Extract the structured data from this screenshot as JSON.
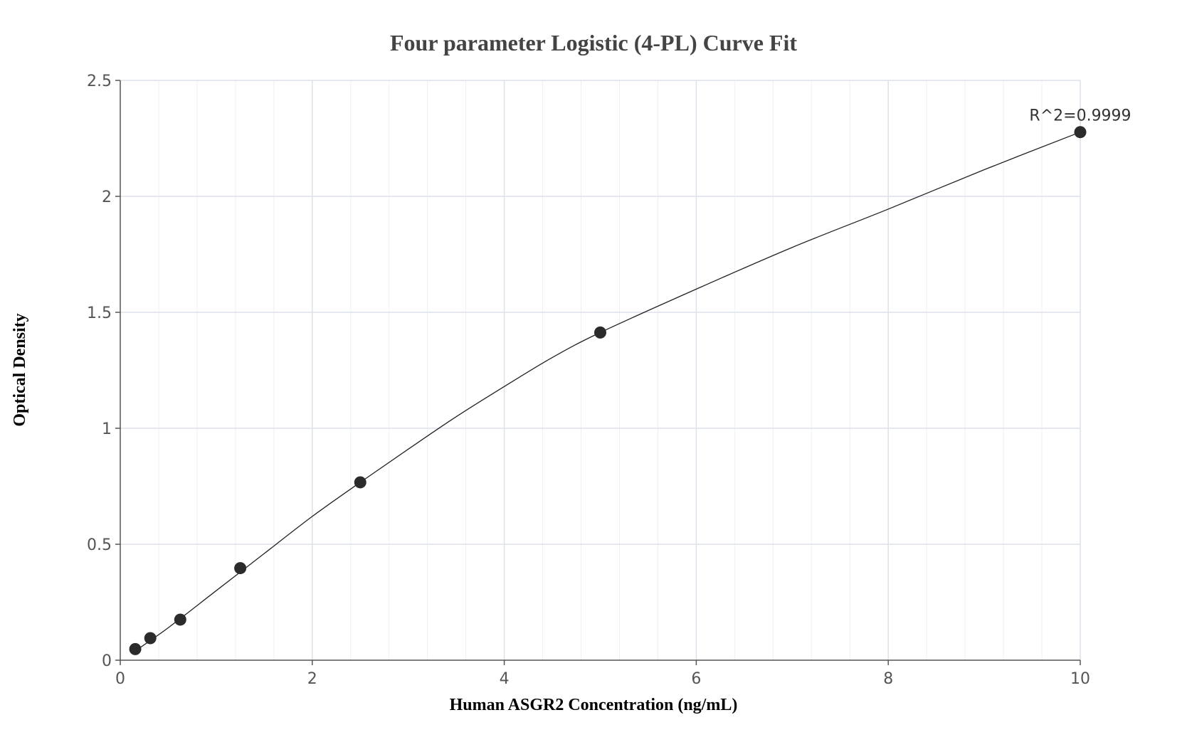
{
  "chart_data": {
    "type": "scatter",
    "title": "Four parameter Logistic (4-PL) Curve Fit",
    "xlabel": "Human ASGR2 Concentration (ng/mL)",
    "ylabel": "Optical Density",
    "xlim": [
      0,
      10
    ],
    "ylim": [
      0,
      2.5
    ],
    "x_ticks": [
      "0",
      "2",
      "4",
      "6",
      "8",
      "10"
    ],
    "y_ticks": [
      "0",
      "0.5",
      "1",
      "1.5",
      "2",
      "2.5"
    ],
    "grid": true,
    "annotation": "R^2=0.9999",
    "series": [
      {
        "points": [
          {
            "x": 0.156,
            "y": 0.048
          },
          {
            "x": 0.313,
            "y": 0.095
          },
          {
            "x": 0.625,
            "y": 0.175
          },
          {
            "x": 1.25,
            "y": 0.397
          },
          {
            "x": 2.5,
            "y": 0.767
          },
          {
            "x": 5.0,
            "y": 1.413
          },
          {
            "x": 10.0,
            "y": 2.277
          }
        ]
      }
    ],
    "fit_curve": [
      {
        "x": 0.156,
        "y": 0.04
      },
      {
        "x": 0.5,
        "y": 0.14
      },
      {
        "x": 1.0,
        "y": 0.3
      },
      {
        "x": 1.5,
        "y": 0.46
      },
      {
        "x": 2.0,
        "y": 0.62
      },
      {
        "x": 2.5,
        "y": 0.767
      },
      {
        "x": 3.0,
        "y": 0.91
      },
      {
        "x": 3.5,
        "y": 1.05
      },
      {
        "x": 4.0,
        "y": 1.18
      },
      {
        "x": 4.5,
        "y": 1.305
      },
      {
        "x": 5.0,
        "y": 1.413
      },
      {
        "x": 6.0,
        "y": 1.6
      },
      {
        "x": 7.0,
        "y": 1.78
      },
      {
        "x": 8.0,
        "y": 1.945
      },
      {
        "x": 9.0,
        "y": 2.115
      },
      {
        "x": 10.0,
        "y": 2.277
      }
    ],
    "colors": {
      "marker": "#2b2b2b",
      "curve": "#222222",
      "grid_major": "#dde1ea",
      "grid_minor": "#eef0f4",
      "axis": "#555555"
    }
  }
}
